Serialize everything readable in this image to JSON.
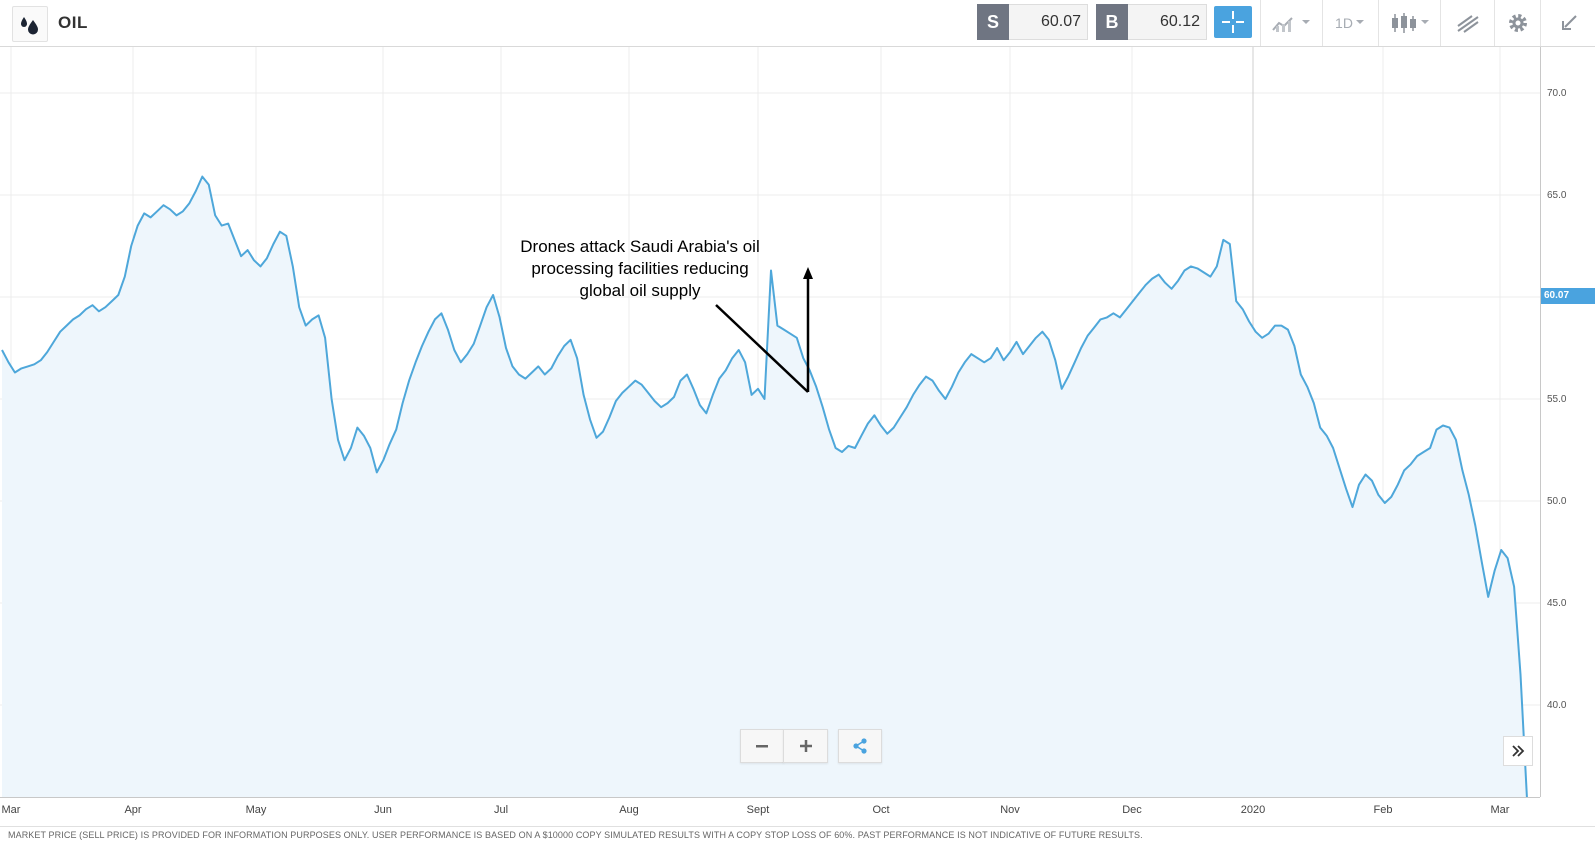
{
  "header": {
    "instrument": "OIL",
    "sell_label": "S",
    "sell_price": "60.07",
    "buy_label": "B",
    "buy_price": "60.12",
    "timeframe": "1D"
  },
  "chart_data": {
    "type": "area",
    "y_ticks": [
      "70.0",
      "65.0",
      "55.0",
      "50.0",
      "45.0",
      "40.0"
    ],
    "x_ticks": [
      "Mar",
      "Apr",
      "May",
      "Jun",
      "Jul",
      "Aug",
      "Sept",
      "Oct",
      "Nov",
      "Dec",
      "2020",
      "Feb",
      "Mar"
    ],
    "ylim": [
      35.4,
      72
    ],
    "current_price_label": "60.07",
    "series": [
      {
        "values": [
          57.4,
          56.8,
          56.3,
          56.5,
          56.6,
          56.7,
          56.9,
          57.3,
          57.8,
          58.3,
          58.6,
          58.9,
          59.1,
          59.4,
          59.6,
          59.3,
          59.5,
          59.8,
          60.1,
          61.0,
          62.5,
          63.5,
          64.1,
          63.9,
          64.2,
          64.5,
          64.3,
          64.0,
          64.2,
          64.6,
          65.2,
          65.9,
          65.5,
          64.0,
          63.5,
          63.6,
          62.8,
          62.0,
          62.3,
          61.8,
          61.5,
          61.9,
          62.6,
          63.2,
          63.0,
          61.5,
          59.5,
          58.6,
          58.9,
          59.1,
          58.0,
          55.0,
          53.0,
          52.0,
          52.6,
          53.6,
          53.2,
          52.6,
          51.4,
          52.0,
          52.8,
          53.5,
          54.8,
          55.9,
          56.8,
          57.6,
          58.3,
          58.9,
          59.2,
          58.4,
          57.4,
          56.8,
          57.2,
          57.7,
          58.6,
          59.5,
          60.1,
          59.0,
          57.5,
          56.6,
          56.2,
          56.0,
          56.3,
          56.6,
          56.2,
          56.5,
          57.1,
          57.6,
          57.9,
          57.0,
          55.2,
          54.0,
          53.1,
          53.4,
          54.1,
          54.9,
          55.3,
          55.6,
          55.9,
          55.7,
          55.3,
          54.9,
          54.6,
          54.8,
          55.1,
          55.9,
          56.2,
          55.5,
          54.7,
          54.3,
          55.2,
          56.0,
          56.4,
          57.0,
          57.4,
          56.8,
          55.2,
          55.5,
          55.0,
          61.3,
          58.6,
          58.4,
          58.2,
          58.0,
          57.0,
          56.4,
          55.6,
          54.6,
          53.5,
          52.6,
          52.4,
          52.7,
          52.6,
          53.2,
          53.8,
          54.2,
          53.7,
          53.3,
          53.6,
          54.1,
          54.6,
          55.2,
          55.7,
          56.1,
          55.9,
          55.4,
          55.0,
          55.6,
          56.3,
          56.8,
          57.2,
          57.0,
          56.8,
          57.0,
          57.5,
          56.9,
          57.3,
          57.8,
          57.2,
          57.6,
          58.0,
          58.3,
          57.9,
          56.9,
          55.5,
          56.1,
          56.8,
          57.5,
          58.1,
          58.5,
          58.9,
          59.0,
          59.2,
          59.0,
          59.4,
          59.8,
          60.2,
          60.6,
          60.9,
          61.1,
          60.7,
          60.4,
          60.8,
          61.3,
          61.5,
          61.4,
          61.2,
          61.0,
          61.5,
          62.8,
          62.6,
          59.8,
          59.4,
          58.8,
          58.3,
          58.0,
          58.2,
          58.6,
          58.6,
          58.4,
          57.6,
          56.2,
          55.6,
          54.8,
          53.6,
          53.2,
          52.6,
          51.6,
          50.6,
          49.7,
          50.8,
          51.3,
          51.0,
          50.3,
          49.9,
          50.2,
          50.8,
          51.5,
          51.8,
          52.2,
          52.4,
          52.6,
          53.5,
          53.7,
          53.6,
          53.0,
          51.5,
          50.3,
          48.8,
          47.0,
          45.3,
          46.6,
          47.6,
          47.2,
          45.8,
          41.5,
          35.4
        ]
      }
    ],
    "annotation": [
      "Drones attack Saudi Arabia's oil",
      "processing facilities reducing",
      "global oil supply"
    ]
  },
  "footer": {
    "disclaimer": "MARKET PRICE (SELL PRICE) IS PROVIDED FOR INFORMATION PURPOSES ONLY. USER PERFORMANCE IS BASED ON A $10000 COPY SIMULATED RESULTS WITH A COPY STOP LOSS OF 60%. PAST PERFORMANCE IS NOT INDICATIVE OF FUTURE RESULTS."
  },
  "colors": {
    "line": "#4ea7da",
    "fill": "#eef6fc",
    "accent": "#4aa3df",
    "price_box": "#6f7582"
  },
  "icons": [
    "oil-drop-logo-icon",
    "crosshair-icon",
    "chart-type-icon",
    "candlestick-icon",
    "drawing-tool-icon",
    "gear-icon",
    "collapse-icon",
    "zoom-out-icon",
    "zoom-in-icon",
    "share-icon",
    "double-chevron-right-icon"
  ]
}
